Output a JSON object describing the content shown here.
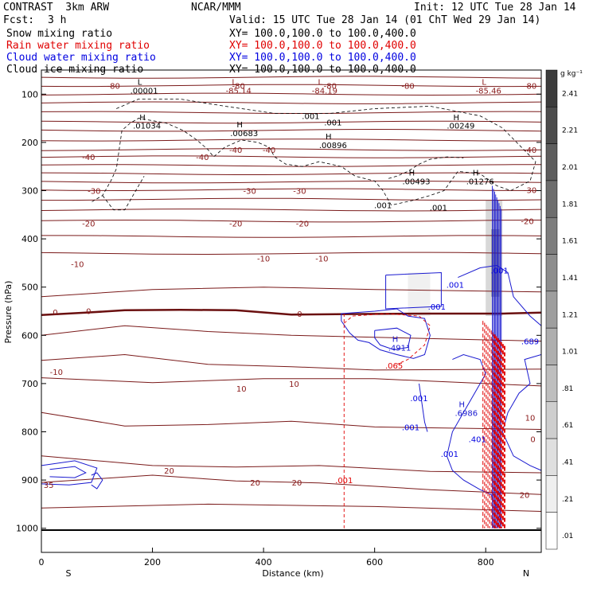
{
  "header": {
    "model": "CONTRAST  3km ARW",
    "center": "NCAR/MMM",
    "init": "Init: 12 UTC Tue 28 Jan 14",
    "fcst_label": "Fcst:",
    "fcst_value": "3 h",
    "valid": "Valid: 15 UTC Tue 28 Jan 14 (01 ChT Wed 29 Jan 14)"
  },
  "fields": [
    {
      "name": "Snow mixing ratio",
      "color": "#000000",
      "xy": "XY= 100.0,100.0 to 100.0,400.0"
    },
    {
      "name": "Rain water mixing ratio",
      "color": "#e00000",
      "xy": "XY= 100.0,100.0 to 100.0,400.0"
    },
    {
      "name": "Cloud water mixing ratio",
      "color": "#0000e0",
      "xy": "XY= 100.0,100.0 to 100.0,400.0"
    },
    {
      "name": "Cloud ice mixing ratio",
      "color": "#000000",
      "xy": "XY= 100.0,100.0 to 100.0,400.0"
    }
  ],
  "chart_data": {
    "type": "contour",
    "title": "Vertical cross section",
    "xlabel": "Distance (km)",
    "ylabel": "Pressure (hPa)",
    "xlim": [
      0,
      900
    ],
    "ylim": [
      1050,
      50
    ],
    "x_ticks": [
      0,
      200,
      400,
      600,
      800
    ],
    "y_ticks": [
      100,
      200,
      300,
      400,
      500,
      600,
      700,
      800,
      900,
      1000
    ],
    "x_end_labels": {
      "left": "S",
      "right": "N"
    },
    "colorbar": {
      "unit": "g kg⁻¹",
      "ticks": [
        "2.41",
        "2.21",
        "2.01",
        "1.81",
        "1.61",
        "1.41",
        "1.21",
        "1.01",
        ".81",
        ".61",
        ".41",
        ".21",
        ".01"
      ]
    },
    "temperature_labels": [
      {
        "text": "-80",
        "x": 130,
        "p": 82
      },
      {
        "text": "-80",
        "x": 355,
        "p": 82
      },
      {
        "text": "-80",
        "x": 660,
        "p": 82
      },
      {
        "text": "-80",
        "x": 880,
        "p": 82
      },
      {
        "text": "-80",
        "x": 520,
        "p": 82
      },
      {
        "text": "-40",
        "x": 85,
        "p": 230
      },
      {
        "text": "-40",
        "x": 290,
        "p": 230
      },
      {
        "text": "-40",
        "x": 410,
        "p": 215
      },
      {
        "text": "-40",
        "x": 880,
        "p": 215
      },
      {
        "text": "-40",
        "x": 350,
        "p": 215
      },
      {
        "text": "-30",
        "x": 95,
        "p": 300
      },
      {
        "text": "-30",
        "x": 375,
        "p": 300
      },
      {
        "text": "-30",
        "x": 465,
        "p": 300
      },
      {
        "text": "-30",
        "x": 880,
        "p": 298
      },
      {
        "text": "-20",
        "x": 85,
        "p": 368
      },
      {
        "text": "-20",
        "x": 350,
        "p": 368
      },
      {
        "text": "-20",
        "x": 470,
        "p": 368
      },
      {
        "text": "-20",
        "x": 875,
        "p": 363
      },
      {
        "text": "-10",
        "x": 65,
        "p": 452
      },
      {
        "text": "-10",
        "x": 400,
        "p": 440
      },
      {
        "text": "-10",
        "x": 505,
        "p": 440
      },
      {
        "text": "-10",
        "x": 27,
        "p": 675
      },
      {
        "text": "0",
        "x": 25,
        "p": 552
      },
      {
        "text": "0",
        "x": 85,
        "p": 549
      },
      {
        "text": "0",
        "x": 465,
        "p": 555
      },
      {
        "text": "10",
        "x": 360,
        "p": 710
      },
      {
        "text": "10",
        "x": 455,
        "p": 700
      },
      {
        "text": "10",
        "x": 880,
        "p": 770
      },
      {
        "text": "20",
        "x": 230,
        "p": 880
      },
      {
        "text": "20",
        "x": 385,
        "p": 905
      },
      {
        "text": "20",
        "x": 460,
        "p": 905
      },
      {
        "text": "20",
        "x": 870,
        "p": 930
      },
      {
        "text": "35",
        "x": 13,
        "p": 910
      },
      {
        "text": "0",
        "x": 885,
        "p": 815
      }
    ],
    "extrema": [
      {
        "kind": "L",
        "value": ".00001",
        "x": 185,
        "p": 92
      },
      {
        "kind": "L",
        "value": "-85.14",
        "x": 355,
        "p": 92
      },
      {
        "kind": "L",
        "value": "-84.19",
        "x": 510,
        "p": 92
      },
      {
        "kind": "L",
        "value": "-85.46",
        "x": 805,
        "p": 92
      },
      {
        "kind": "H",
        "value": ".01034",
        "x": 190,
        "p": 165
      },
      {
        "kind": "H",
        "value": ".00683",
        "x": 365,
        "p": 180
      },
      {
        "kind": "H",
        "value": ".00896",
        "x": 525,
        "p": 205
      },
      {
        "kind": "H",
        "value": ".00249",
        "x": 755,
        "p": 165
      },
      {
        "kind": "H",
        "value": ".00493",
        "x": 675,
        "p": 280
      },
      {
        "kind": "H",
        "value": ".01276",
        "x": 790,
        "p": 280
      },
      {
        "kind": "H",
        "value": ".4911",
        "x": 645,
        "p": 625
      },
      {
        "kind": "H",
        "value": ".6986",
        "x": 765,
        "p": 760
      }
    ],
    "moisture_labels": [
      {
        "text": ".001",
        "x": 485,
        "p": 145,
        "color": "#000000"
      },
      {
        "text": ".001",
        "x": 525,
        "p": 158,
        "color": "#000000"
      },
      {
        "text": ".001",
        "x": 615,
        "p": 330,
        "color": "#000000"
      },
      {
        "text": ".001",
        "x": 715,
        "p": 335,
        "color": "#000000"
      },
      {
        "text": ".001",
        "x": 745,
        "p": 495,
        "color": "#0000e0"
      },
      {
        "text": ".001",
        "x": 712,
        "p": 540,
        "color": "#0000e0"
      },
      {
        "text": ".001",
        "x": 825,
        "p": 465,
        "color": "#0000e0"
      },
      {
        "text": ".001",
        "x": 680,
        "p": 730,
        "color": "#0000e0"
      },
      {
        "text": ".001",
        "x": 665,
        "p": 790,
        "color": "#0000e0"
      },
      {
        "text": ".001",
        "x": 735,
        "p": 845,
        "color": "#0000e0"
      },
      {
        "text": ".401",
        "x": 785,
        "p": 815,
        "color": "#0000e0"
      },
      {
        "text": ".689",
        "x": 880,
        "p": 612,
        "color": "#0000e0"
      },
      {
        "text": ".065",
        "x": 635,
        "p": 662,
        "color": "#e00000"
      },
      {
        "text": ".001",
        "x": 545,
        "p": 900,
        "color": "#e00000"
      }
    ]
  }
}
